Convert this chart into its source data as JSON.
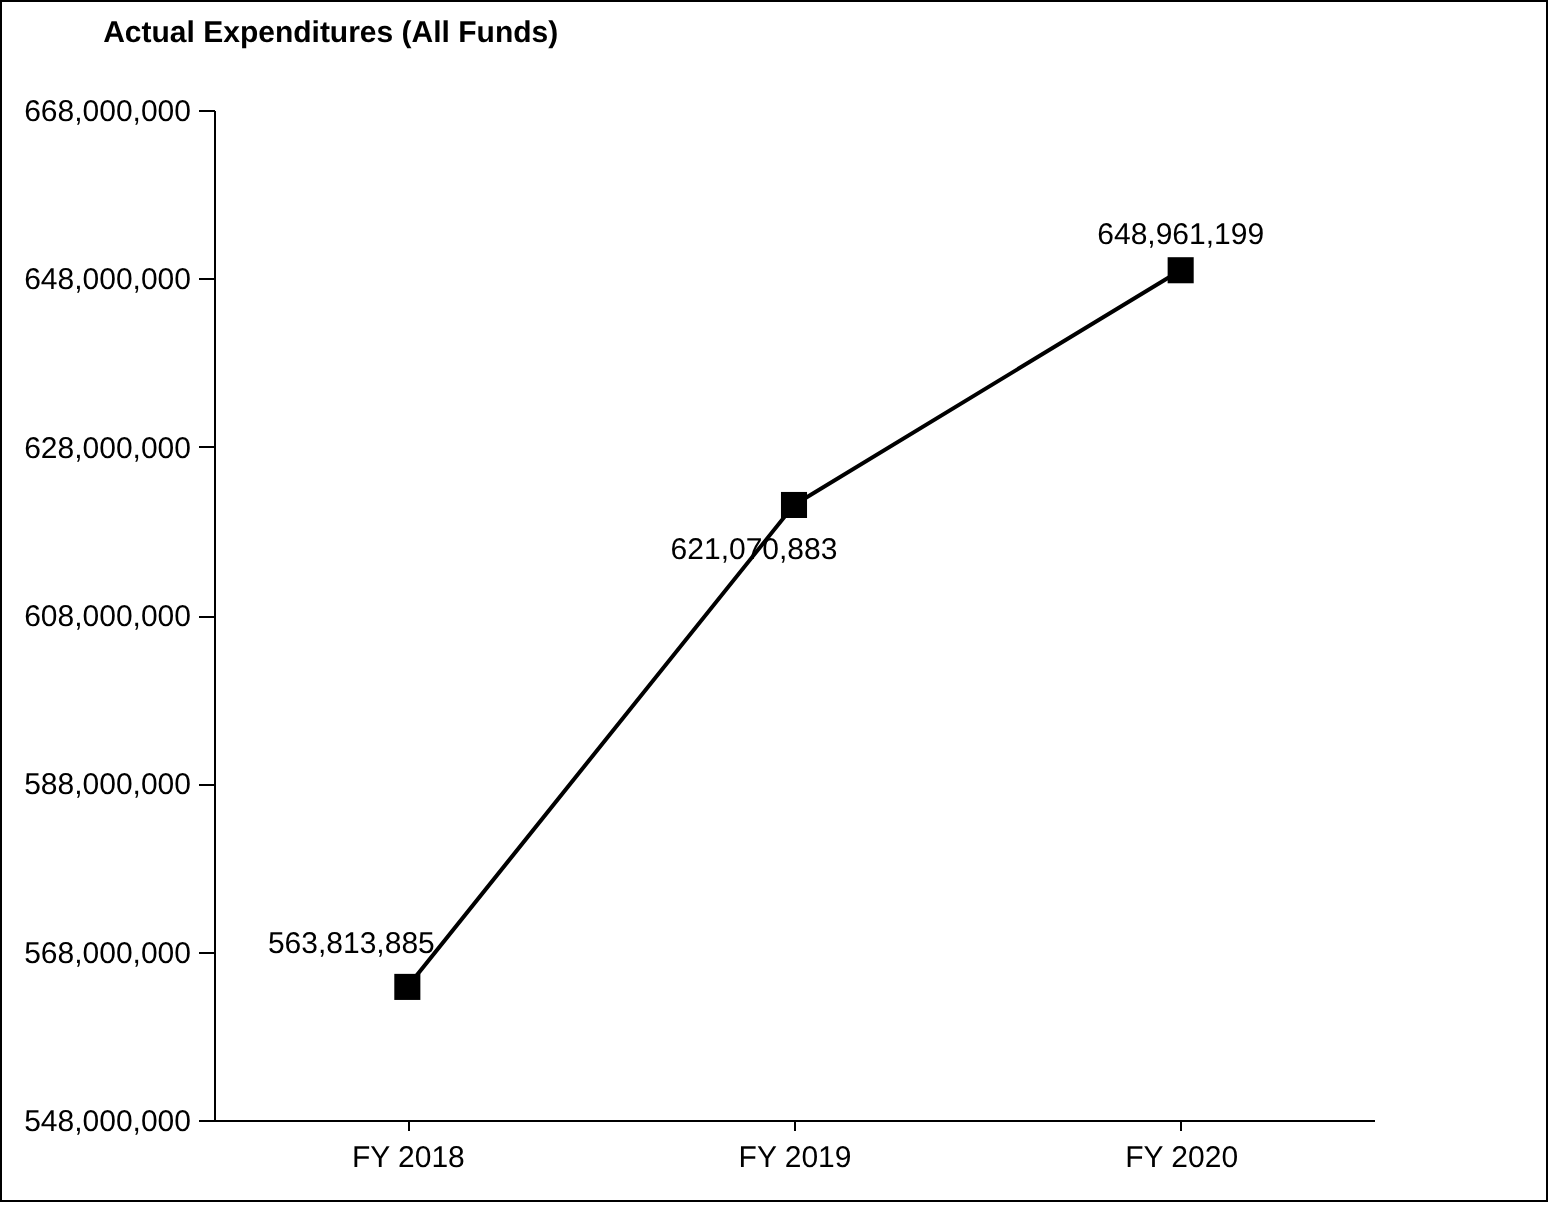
{
  "chart_data": {
    "type": "line",
    "title": "Actual Expenditures (All Funds)",
    "categories": [
      "FY 2018",
      "FY 2019",
      "FY 2020"
    ],
    "series": [
      {
        "color": "#000000",
        "values": [
          563813885,
          621070883,
          648961199
        ],
        "value_labels": [
          "563,813,885",
          "621,070,883",
          "648,961,199"
        ]
      }
    ],
    "ylim": [
      548000000,
      668000000
    ],
    "yticks": [
      {
        "value": 548000000,
        "label": "548,000,000"
      },
      {
        "value": 568000000,
        "label": "568,000,000"
      },
      {
        "value": 588000000,
        "label": "588,000,000"
      },
      {
        "value": 608000000,
        "label": "608,000,000"
      },
      {
        "value": 628000000,
        "label": "628,000,000"
      },
      {
        "value": 648000000,
        "label": "648,000,000"
      },
      {
        "value": 668000000,
        "label": "668,000,000"
      }
    ],
    "grid": false,
    "marker": "square",
    "line_style": "solid"
  }
}
